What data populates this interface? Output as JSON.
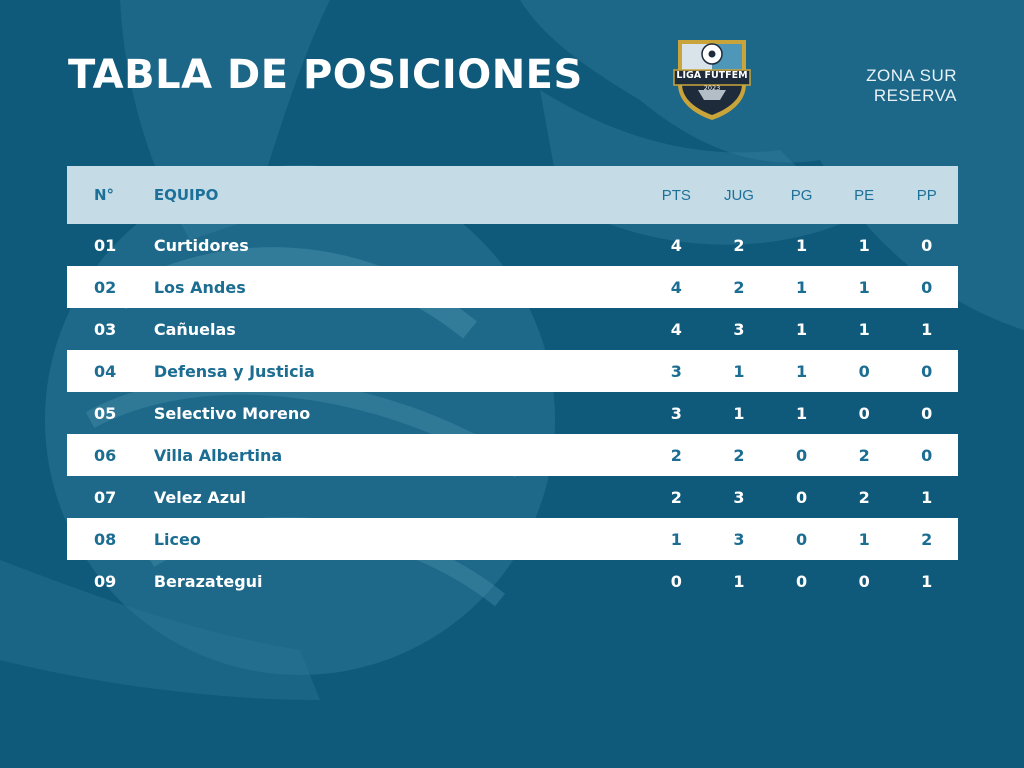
{
  "header": {
    "title": "TABLA DE POSICIONES",
    "zone_line1": "ZONA SUR",
    "zone_line2": "RESERVA",
    "logo_text": "LIGA FUTFEM",
    "logo_year": "2023"
  },
  "colors": {
    "background": "#0f5a7a",
    "header_row": "#c5dbe6",
    "accent_text": "#1c6d92",
    "logo_gold": "#c9a43a"
  },
  "table": {
    "columns": {
      "pos": "N°",
      "team": "EQUIPO",
      "pts": "PTS",
      "jug": "JUG",
      "pg": "PG",
      "pe": "PE",
      "pp": "PP"
    },
    "rows": [
      {
        "pos": "01",
        "team": "Curtidores",
        "pts": "4",
        "jug": "2",
        "pg": "1",
        "pe": "1",
        "pp": "0"
      },
      {
        "pos": "02",
        "team": "Los Andes",
        "pts": "4",
        "jug": "2",
        "pg": "1",
        "pe": "1",
        "pp": "0"
      },
      {
        "pos": "03",
        "team": "Cañuelas",
        "pts": "4",
        "jug": "3",
        "pg": "1",
        "pe": "1",
        "pp": "1"
      },
      {
        "pos": "04",
        "team": "Defensa y Justicia",
        "pts": "3",
        "jug": "1",
        "pg": "1",
        "pe": "0",
        "pp": "0"
      },
      {
        "pos": "05",
        "team": "Selectivo Moreno",
        "pts": "3",
        "jug": "1",
        "pg": "1",
        "pe": "0",
        "pp": "0"
      },
      {
        "pos": "06",
        "team": "Villa Albertina",
        "pts": "2",
        "jug": "2",
        "pg": "0",
        "pe": "2",
        "pp": "0"
      },
      {
        "pos": "07",
        "team": "Velez Azul",
        "pts": "2",
        "jug": "3",
        "pg": "0",
        "pe": "2",
        "pp": "1"
      },
      {
        "pos": "08",
        "team": "Liceo",
        "pts": "1",
        "jug": "3",
        "pg": "0",
        "pe": "1",
        "pp": "2"
      },
      {
        "pos": "09",
        "team": "Berazategui",
        "pts": "0",
        "jug": "1",
        "pg": "0",
        "pe": "0",
        "pp": "1"
      }
    ]
  }
}
